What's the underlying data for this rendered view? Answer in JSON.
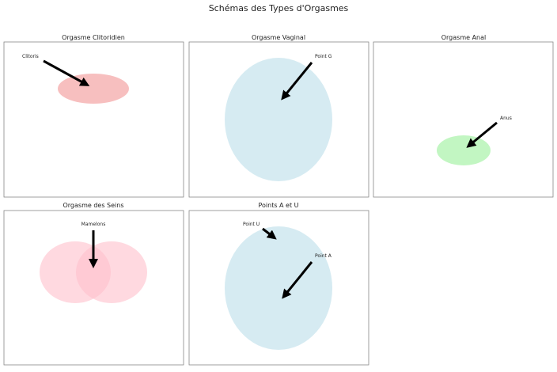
{
  "title": "Schémas des Types d'Orgasmes",
  "panels": [
    {
      "title": "Orgasme Clitoridien",
      "labels": [
        "Clitoris"
      ],
      "color": "#f08080"
    },
    {
      "title": "Orgasme Vaginal",
      "labels": [
        "Point G"
      ],
      "color": "#add8e6"
    },
    {
      "title": "Orgasme Anal",
      "labels": [
        "Anus"
      ],
      "color": "#90ee90"
    },
    {
      "title": "Orgasme des Seins",
      "labels": [
        "Mamelons"
      ],
      "color": "#ffc0cb"
    },
    {
      "title": "Points A et U",
      "labels": [
        "Point U",
        "Point A"
      ],
      "color": "#add8e6"
    }
  ]
}
